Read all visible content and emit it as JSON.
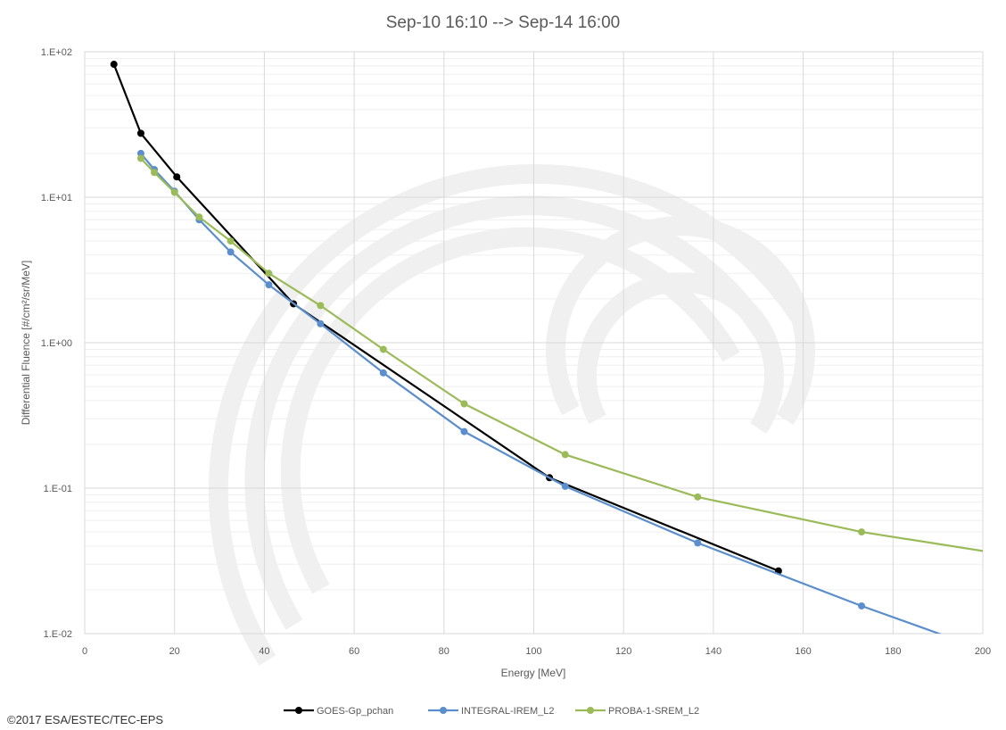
{
  "chart_data": {
    "type": "line",
    "title": "Sep-10 16:10 --> Sep-14 16:00",
    "xlabel": "Energy [MeV]",
    "ylabel": "Differential Fluence [#/cm²/sr/MeV]",
    "xlim": [
      0,
      200
    ],
    "ylim": [
      0.01,
      100
    ],
    "yscale": "log",
    "grid": true,
    "legend_position": "bottom",
    "x_ticks": [
      "0",
      "20",
      "40",
      "60",
      "80",
      "100",
      "120",
      "140",
      "160",
      "180",
      "200"
    ],
    "y_ticks": [
      "1.E-02",
      "1.E-01",
      "1.E+00",
      "1.E+01",
      "1.E+02"
    ],
    "series": [
      {
        "name": "GOES-Gp_pchan",
        "color": "#000000",
        "x": [
          6.5,
          12.5,
          20.5,
          46.5,
          103.5,
          154.5
        ],
        "y": [
          82,
          27.5,
          13.8,
          1.85,
          0.118,
          0.027
        ]
      },
      {
        "name": "INTEGRAL-IREM_L2",
        "color": "#5B8ECC",
        "x": [
          12.5,
          15.5,
          20,
          25.5,
          32.5,
          41,
          52.5,
          66.5,
          84.5,
          107,
          136.5,
          173,
          200
        ],
        "y": [
          20,
          15.5,
          11,
          7,
          4.2,
          2.5,
          1.35,
          0.62,
          0.245,
          0.103,
          0.042,
          0.0155,
          0.0078
        ]
      },
      {
        "name": "PROBA-1-SREM_L2",
        "color": "#9BBB59",
        "x": [
          12.5,
          15.5,
          20,
          25.5,
          32.5,
          41,
          52.5,
          66.5,
          84.5,
          107,
          136.5,
          173,
          200
        ],
        "y": [
          18.5,
          14.8,
          10.8,
          7.3,
          5,
          3,
          1.8,
          0.9,
          0.38,
          0.17,
          0.087,
          0.05,
          0.037
        ]
      }
    ]
  },
  "footer": {
    "copyright": "©2017 ESA/ESTEC/TEC-EPS"
  }
}
